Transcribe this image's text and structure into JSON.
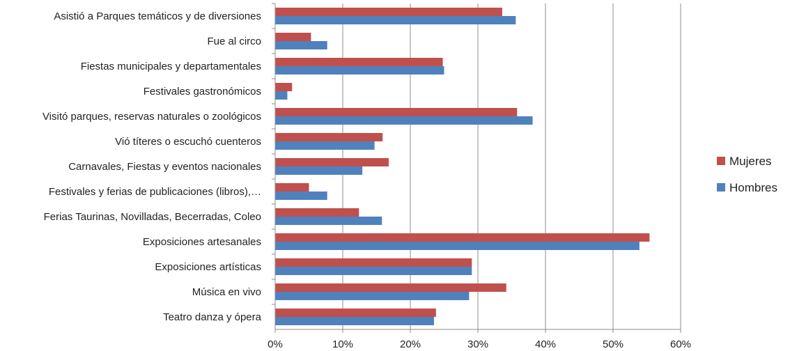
{
  "chart_data": {
    "type": "bar",
    "orientation": "horizontal",
    "categories": [
      "Asistió a Parques temáticos y de diversiones",
      "Fue al circo",
      "Fiestas municipales y departamentales",
      "Festivales gastronómicos",
      "Visitó parques, reservas naturales o zoológicos",
      "Vió títeres o escuchó cuenteros",
      "Carnavales, Fiestas y eventos nacionales",
      "Festivales y ferias de publicaciones (libros),…",
      "Ferias Taurinas, Novilladas, Becerradas, Coleo",
      "Exposiciones artesanales",
      "Exposiciones artísticas",
      "Música en vivo",
      "Teatro danza y ópera"
    ],
    "series": [
      {
        "name": "Mujeres",
        "color": "#C0504D",
        "values": [
          33.6,
          5.3,
          24.8,
          2.5,
          35.8,
          15.9,
          16.8,
          5.0,
          12.4,
          55.4,
          29.1,
          34.2,
          23.8
        ]
      },
      {
        "name": "Hombres",
        "color": "#4F81BD",
        "values": [
          35.6,
          7.7,
          25.0,
          1.8,
          38.1,
          14.7,
          12.9,
          7.7,
          15.8,
          53.9,
          29.1,
          28.7,
          23.5
        ]
      }
    ],
    "xlim": [
      0,
      60
    ],
    "x_ticks": [
      0,
      10,
      20,
      30,
      40,
      50,
      60
    ],
    "x_tick_labels": [
      "0%",
      "10%",
      "20%",
      "30%",
      "40%",
      "50%",
      "60%"
    ],
    "grid": "vertical",
    "legend": {
      "position": "right",
      "order": [
        "Mujeres",
        "Hombres"
      ]
    }
  }
}
